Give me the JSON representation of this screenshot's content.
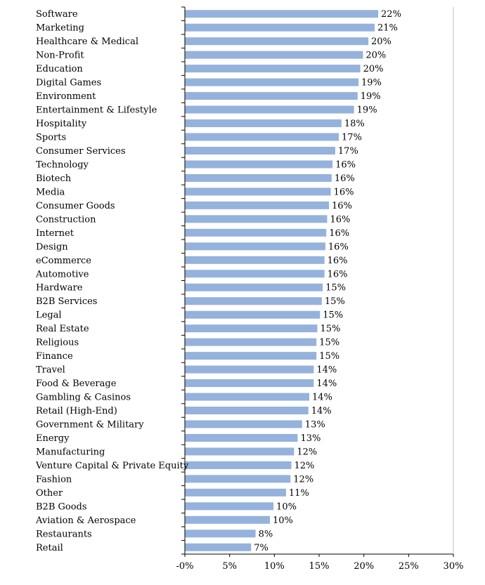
{
  "chart_data": {
    "type": "bar",
    "orientation": "horizontal",
    "title": "",
    "xlabel": "",
    "ylabel": "",
    "categories": [
      "Software",
      "Marketing",
      "Healthcare & Medical",
      "Non-Profit",
      "Education",
      "Digital Games",
      "Environment",
      "Entertainment & Lifestyle",
      "Hospitality",
      "Sports",
      "Consumer Services",
      "Technology",
      "Biotech",
      "Media",
      "Consumer Goods",
      "Construction",
      "Internet",
      "Design",
      "eCommerce",
      "Automotive",
      "Hardware",
      "B2B Services",
      "Legal",
      "Real Estate",
      "Religious",
      "Finance",
      "Travel",
      "Food & Beverage",
      "Gambling & Casinos",
      "Retail (High-End)",
      "Government & Military",
      "Energy",
      "Manufacturing",
      "Venture Capital & Private Equity",
      "Fashion",
      "Other",
      "B2B Goods",
      "Aviation & Aerospace",
      "Restaurants",
      "Retail"
    ],
    "values": [
      21.6,
      21.2,
      20.5,
      19.9,
      19.6,
      19.4,
      19.3,
      18.9,
      17.5,
      17.2,
      16.8,
      16.5,
      16.4,
      16.3,
      16.1,
      15.9,
      15.8,
      15.7,
      15.6,
      15.6,
      15.4,
      15.3,
      15.1,
      14.8,
      14.7,
      14.7,
      14.4,
      14.4,
      13.9,
      13.8,
      13.1,
      12.6,
      12.2,
      11.9,
      11.8,
      11.3,
      9.9,
      9.5,
      7.9,
      7.4
    ],
    "value_labels": [
      "22%",
      "21%",
      "20%",
      "20%",
      "20%",
      "19%",
      "19%",
      "19%",
      "18%",
      "17%",
      "17%",
      "16%",
      "16%",
      "16%",
      "16%",
      "16%",
      "16%",
      "16%",
      "16%",
      "16%",
      "15%",
      "15%",
      "15%",
      "15%",
      "15%",
      "15%",
      "14%",
      "14%",
      "14%",
      "14%",
      "13%",
      "13%",
      "12%",
      "12%",
      "12%",
      "11%",
      "10%",
      "10%",
      "8%",
      "7%"
    ],
    "x_ticks": [
      "-0%",
      "5%",
      "10%",
      "15%",
      "20%",
      "25%",
      "30%"
    ],
    "xlim": [
      0,
      30
    ],
    "grid": false,
    "legend": "none",
    "bar_color": "#94b2dc",
    "axis_color": "#000000",
    "right_border_color": "#bfbfbf"
  }
}
